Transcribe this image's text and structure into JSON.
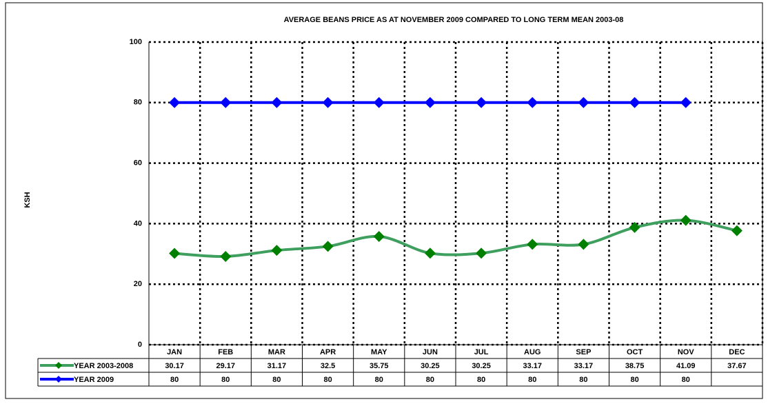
{
  "chart_data": {
    "type": "line",
    "title": "AVERAGE BEANS PRICE AS AT  NOVEMBER 2009 COMPARED TO LONG TERM MEAN 2003-08",
    "y_label": "KSH",
    "categories": [
      "JAN",
      "FEB",
      "MAR",
      "APR",
      "MAY",
      "JUN",
      "JUL",
      "AUG",
      "SEP",
      "OCT",
      "NOV",
      "DEC"
    ],
    "series": [
      {
        "name": "YEAR 2003-2008",
        "color": "#3f9f5f",
        "marker_color": "#008000",
        "smooth": true,
        "values": [
          30.17,
          29.17,
          31.17,
          32.5,
          35.75,
          30.25,
          30.25,
          33.17,
          33.17,
          38.75,
          41.09,
          37.67
        ]
      },
      {
        "name": "YEAR 2009",
        "color": "#0000ff",
        "marker_color": "#0000ff",
        "smooth": false,
        "values": [
          80,
          80,
          80,
          80,
          80,
          80,
          80,
          80,
          80,
          80,
          80,
          null
        ]
      }
    ],
    "ylim": [
      0,
      100
    ],
    "yticks": [
      0,
      20,
      40,
      60,
      80,
      100
    ],
    "grid": true,
    "data_table": true
  }
}
